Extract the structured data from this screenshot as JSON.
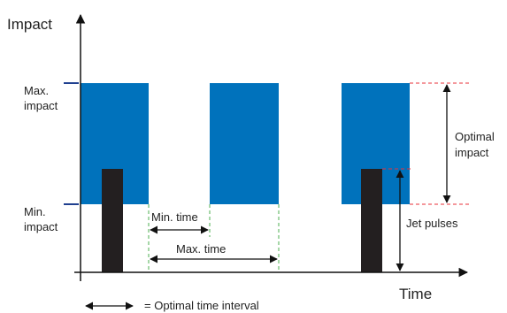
{
  "axes": {
    "y_title": "Impact",
    "x_title": "Time"
  },
  "levels": {
    "max_line1": "Max.",
    "max_line2": "impact",
    "min_line1": "Min.",
    "min_line2": "impact"
  },
  "annotations": {
    "min_time": "Min. time",
    "max_time": "Max. time",
    "optimal_line1": "Optimal",
    "optimal_line2": "impact",
    "jet_pulses": "Jet pulses"
  },
  "legend": {
    "text": "= Optimal time interval"
  },
  "colors": {
    "impact_block": "#0072bc",
    "jet_pulse": "#231f20",
    "level_tick": "#1f3f8f",
    "dashed_red": "#e8303a",
    "dashed_green": "#4caf50",
    "axis": "#111111"
  }
}
